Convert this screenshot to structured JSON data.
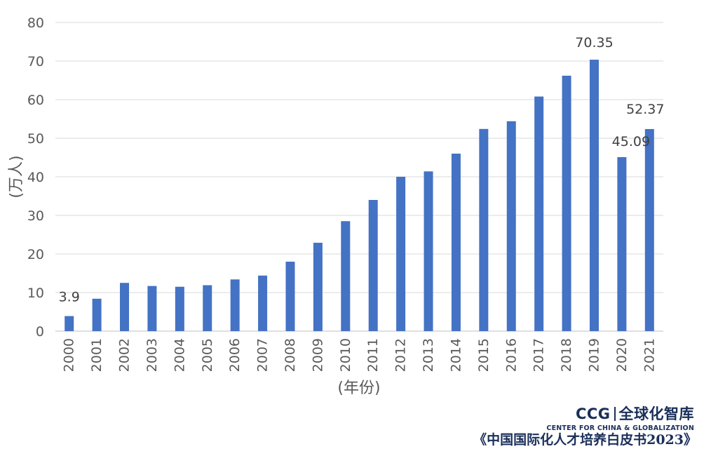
{
  "chart_data": {
    "type": "bar",
    "categories": [
      "2000",
      "2001",
      "2002",
      "2003",
      "2004",
      "2005",
      "2006",
      "2007",
      "2008",
      "2009",
      "2010",
      "2011",
      "2012",
      "2013",
      "2014",
      "2015",
      "2016",
      "2017",
      "2018",
      "2019",
      "2020",
      "2021"
    ],
    "values": [
      3.9,
      8.4,
      12.5,
      11.7,
      11.5,
      11.9,
      13.4,
      14.4,
      18.0,
      22.9,
      28.5,
      34.0,
      40.0,
      41.4,
      46.0,
      52.4,
      54.4,
      60.8,
      66.2,
      70.35,
      45.09,
      52.37
    ],
    "data_labels": {
      "0": "3.9",
      "19": "70.35",
      "20": "45.09",
      "21": "52.37"
    },
    "xlabel": "(年份)",
    "ylabel": "(万人)",
    "ylim": [
      0,
      80
    ],
    "yticks": [
      0,
      10,
      20,
      30,
      40,
      50,
      60,
      70,
      80
    ],
    "grid": "horizontal",
    "bar_color": "#4472C4"
  },
  "branding": {
    "logo_ccg": "CCG",
    "logo_cn": "全球化智库",
    "logo_en": "CENTER FOR CHINA & GLOBALIZATION",
    "source": "《中国国际化人才培养白皮书2023》"
  }
}
